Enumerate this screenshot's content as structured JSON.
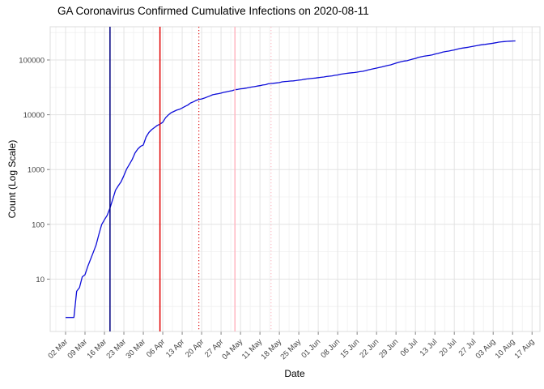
{
  "title": "GA Coronavirus Confirmed Cumulative Infections on 2020-08-11",
  "axes": {
    "x_label": "Date",
    "y_label": "Count (Log Scale)",
    "x_tick_labels": [
      "02 Mar",
      "09 Mar",
      "16 Mar",
      "23 Mar",
      "30 Mar",
      "06 Apr",
      "13 Apr",
      "20 Apr",
      "27 Apr",
      "04 May",
      "11 May",
      "18 May",
      "25 May",
      "01 Jun",
      "08 Jun",
      "15 Jun",
      "22 Jun",
      "29 Jun",
      "06 Jul",
      "13 Jul",
      "20 Jul",
      "27 Jul",
      "03 Aug",
      "10 Aug",
      "17 Aug"
    ],
    "y_tick_labels": [
      "10",
      "100",
      "1000",
      "10000",
      "100000"
    ]
  },
  "colors": {
    "line": "#0D0DD9",
    "navy_event": "#000080",
    "red_event": "#E00000",
    "pink_event": "#FFB6C1",
    "grid_major": "#E3E3E3",
    "grid_minor": "#F0F0F0",
    "panel_border": "#DCDCDC",
    "tick_mark": "#7F7F7F",
    "tick_text": "#454545"
  },
  "chart_data": {
    "type": "line",
    "title": "GA Coronavirus Confirmed Cumulative Infections on 2020-08-11",
    "xlabel": "Date",
    "ylabel": "Count (Log Scale)",
    "y_scale": "log10",
    "ylim": [
      1,
      400000
    ],
    "y_ticks": [
      10,
      100,
      1000,
      10000,
      100000
    ],
    "x_tick_interval_days": 7,
    "grid": true,
    "legend": "none",
    "start_date": "2020-03-02",
    "end_date": "2020-08-11",
    "frequency": "daily",
    "series": [
      {
        "name": "confirmed_cumulative_infections",
        "color": "#0D0DD9",
        "values": [
          2,
          2,
          2,
          2,
          6,
          7,
          11,
          12,
          17,
          23,
          31,
          42,
          66,
          99,
          121,
          146,
          199,
          287,
          420,
          507,
          600,
          772,
          1026,
          1247,
          1525,
          2001,
          2366,
          2651,
          2809,
          3929,
          4748,
          5348,
          5831,
          6383,
          6742,
          7314,
          8818,
          9901,
          10885,
          11483,
          12159,
          12550,
          13315,
          14223,
          14987,
          16369,
          17194,
          18301,
          18947,
          19398,
          20166,
          21102,
          22147,
          23216,
          23773,
          24225,
          24854,
          25679,
          26264,
          26956,
          27496,
          28602,
          29045,
          29711,
          30093,
          30707,
          31439,
          32106,
          32564,
          33441,
          34002,
          34848,
          35427,
          36681,
          37147,
          37579,
          38081,
          38624,
          39801,
          40405,
          40663,
          41218,
          41482,
          42132,
          42837,
          43400,
          44421,
          45053,
          45670,
          46344,
          46786,
          47618,
          48207,
          48894,
          49847,
          50621,
          51309,
          52497,
          53249,
          54973,
          55783,
          56801,
          57681,
          58414,
          59078,
          60030,
          61134,
          62009,
          63809,
          65928,
          67678,
          69381,
          71095,
          72995,
          74985,
          77210,
          79417,
          81291,
          84237,
          87709,
          90493,
          93319,
          95516,
          97064,
          100470,
          103890,
          106727,
          111211,
          114401,
          116926,
          118926,
          121134,
          123963,
          127834,
          131275,
          135183,
          139880,
          143123,
          145575,
          148988,
          152302,
          156588,
          161420,
          165188,
          167953,
          170843,
          175052,
          178323,
          182286,
          186352,
          190012,
          192542,
          195435,
          199143,
          202586,
          206560,
          211440,
          214306,
          216596,
          219025,
          220544,
          221600,
          222588
        ]
      }
    ],
    "vlines": [
      {
        "date": "2020-03-18",
        "style": "solid",
        "color": "#000080",
        "name": "navy-event-line"
      },
      {
        "date": "2020-04-05",
        "style": "solid",
        "color": "#E00000",
        "name": "red-event-line"
      },
      {
        "date": "2020-04-19",
        "style": "dotted",
        "color": "#E00000",
        "name": "red-dotted-event-line"
      },
      {
        "date": "2020-05-02",
        "style": "solid",
        "color": "#FFB6C1",
        "name": "pink-event-line"
      },
      {
        "date": "2020-05-15",
        "style": "dotted",
        "color": "#FFB6C1",
        "name": "pink-dotted-event-line"
      }
    ]
  }
}
